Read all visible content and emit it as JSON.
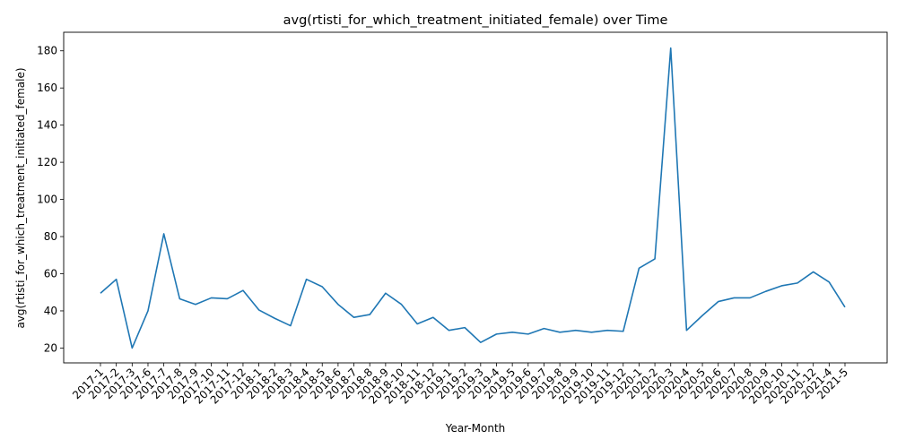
{
  "chart_data": {
    "type": "line",
    "title": "avg(rtisti_for_which_treatment_initiated_female) over Time",
    "xlabel": "Year-Month",
    "ylabel": "avg(rtisti_for_which_treatment_initiated_female)",
    "ylim": [
      12,
      190
    ],
    "yticks": [
      20,
      40,
      60,
      80,
      100,
      120,
      140,
      160,
      180
    ],
    "grid": false,
    "line_color": "#1f77b4",
    "categories": [
      "2017-1",
      "2017-2",
      "2017-3",
      "2017-6",
      "2017-7",
      "2017-8",
      "2017-9",
      "2017-10",
      "2017-11",
      "2017-12",
      "2018-1",
      "2018-2",
      "2018-3",
      "2018-4",
      "2018-5",
      "2018-6",
      "2018-7",
      "2018-8",
      "2018-9",
      "2018-10",
      "2018-11",
      "2018-12",
      "2019-1",
      "2019-2",
      "2019-3",
      "2019-4",
      "2019-5",
      "2019-6",
      "2019-7",
      "2019-8",
      "2019-9",
      "2019-10",
      "2019-11",
      "2019-12",
      "2020-1",
      "2020-2",
      "2020-3",
      "2020-4",
      "2020-5",
      "2020-6",
      "2020-7",
      "2020-8",
      "2020-9",
      "2020-10",
      "2020-11",
      "2020-12",
      "2021-4",
      "2021-5"
    ],
    "values": [
      49.5,
      57,
      20,
      40,
      81.5,
      46.5,
      43.5,
      47,
      46.5,
      51,
      40.5,
      36,
      32,
      57,
      53,
      43.5,
      36.5,
      38,
      49.5,
      43.5,
      33,
      36.5,
      29.5,
      31,
      23,
      27.5,
      28.5,
      27.5,
      30.5,
      28.5,
      29.5,
      28.5,
      29.5,
      29,
      63,
      68,
      181.5,
      29.5,
      37.5,
      45,
      47,
      47,
      50.5,
      53.5,
      55,
      61,
      55.5,
      42
    ]
  }
}
